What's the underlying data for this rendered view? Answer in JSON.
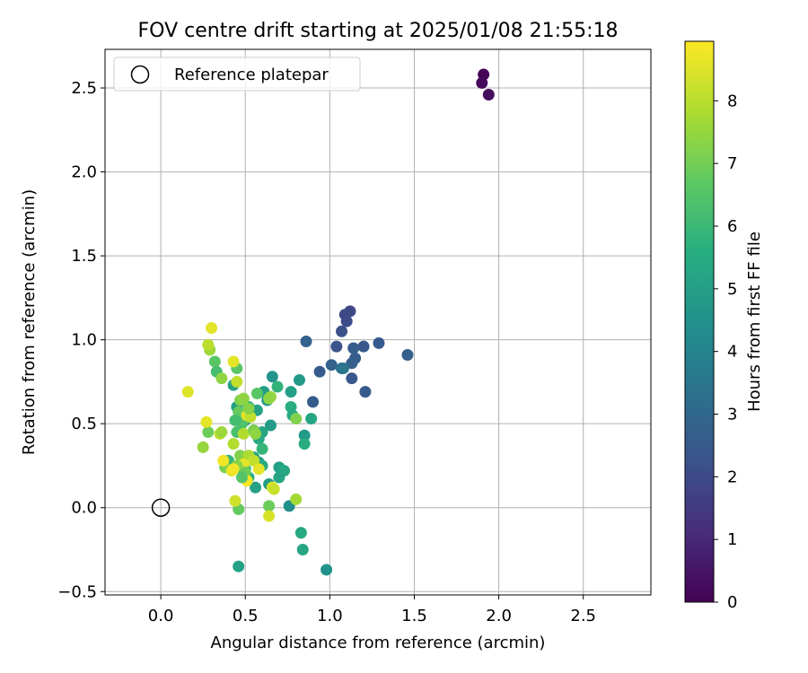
{
  "chart_data": {
    "type": "scatter",
    "title": "FOV centre drift starting at 2025/01/08 21:55:18",
    "xlabel": "Angular distance from reference (arcmin)",
    "ylabel": "Rotation from reference (arcmin)",
    "xlim": [
      -0.33,
      2.9
    ],
    "ylim": [
      -0.52,
      2.73
    ],
    "xticks": [
      0.0,
      0.5,
      1.0,
      1.5,
      2.0,
      2.5
    ],
    "xtick_labels": [
      "0.0",
      "0.5",
      "1.0",
      "1.5",
      "2.0",
      "2.5"
    ],
    "yticks": [
      -0.5,
      0.0,
      0.5,
      1.0,
      1.5,
      2.0,
      2.5
    ],
    "ytick_labels": [
      "−0.5",
      "0.0",
      "0.5",
      "1.0",
      "1.5",
      "2.0",
      "2.5"
    ],
    "grid": true,
    "legend": {
      "placement": "upper-left",
      "entries": [
        {
          "label": "Reference platepar",
          "marker": "open-circle"
        }
      ]
    },
    "reference_point": {
      "x": 0.0,
      "y": 0.0
    },
    "colorbar": {
      "label": "Hours from first FF file",
      "colormap": "viridis",
      "range": [
        0,
        8.95
      ],
      "ticks": [
        0,
        1,
        2,
        3,
        4,
        5,
        6,
        7,
        8
      ],
      "tick_labels": [
        "0",
        "1",
        "2",
        "3",
        "4",
        "5",
        "6",
        "7",
        "8"
      ]
    },
    "points": [
      {
        "x": 1.91,
        "y": 2.58,
        "c": 0.1
      },
      {
        "x": 1.9,
        "y": 2.53,
        "c": 0.2
      },
      {
        "x": 1.94,
        "y": 2.46,
        "c": 0.3
      },
      {
        "x": 1.12,
        "y": 1.17,
        "c": 1.9
      },
      {
        "x": 1.09,
        "y": 1.15,
        "c": 2.0
      },
      {
        "x": 1.1,
        "y": 1.11,
        "c": 2.1
      },
      {
        "x": 1.07,
        "y": 1.05,
        "c": 2.2
      },
      {
        "x": 1.04,
        "y": 0.96,
        "c": 2.3
      },
      {
        "x": 1.2,
        "y": 0.96,
        "c": 2.4
      },
      {
        "x": 1.29,
        "y": 0.98,
        "c": 2.5
      },
      {
        "x": 1.14,
        "y": 0.95,
        "c": 2.6
      },
      {
        "x": 1.15,
        "y": 0.89,
        "c": 2.6
      },
      {
        "x": 1.13,
        "y": 0.86,
        "c": 2.7
      },
      {
        "x": 1.01,
        "y": 0.85,
        "c": 2.8
      },
      {
        "x": 0.94,
        "y": 0.81,
        "c": 2.5
      },
      {
        "x": 1.13,
        "y": 0.77,
        "c": 2.4
      },
      {
        "x": 1.21,
        "y": 0.69,
        "c": 2.5
      },
      {
        "x": 0.9,
        "y": 0.63,
        "c": 2.6
      },
      {
        "x": 1.46,
        "y": 0.91,
        "c": 2.7
      },
      {
        "x": 0.86,
        "y": 0.99,
        "c": 2.8
      },
      {
        "x": 1.07,
        "y": 0.83,
        "c": 3.2
      },
      {
        "x": 1.08,
        "y": 0.83,
        "c": 3.5
      },
      {
        "x": 0.66,
        "y": 0.78,
        "c": 4.6
      },
      {
        "x": 0.82,
        "y": 0.76,
        "c": 4.8
      },
      {
        "x": 0.77,
        "y": 0.69,
        "c": 5.0
      },
      {
        "x": 0.61,
        "y": 0.69,
        "c": 5.0
      },
      {
        "x": 0.69,
        "y": 0.72,
        "c": 5.8
      },
      {
        "x": 0.63,
        "y": 0.64,
        "c": 4.7
      },
      {
        "x": 0.77,
        "y": 0.6,
        "c": 5.6
      },
      {
        "x": 0.78,
        "y": 0.55,
        "c": 5.4
      },
      {
        "x": 0.89,
        "y": 0.53,
        "c": 5.3
      },
      {
        "x": 0.65,
        "y": 0.49,
        "c": 4.9
      },
      {
        "x": 0.6,
        "y": 0.45,
        "c": 5.2
      },
      {
        "x": 0.85,
        "y": 0.43,
        "c": 4.8
      },
      {
        "x": 0.85,
        "y": 0.38,
        "c": 5.5
      },
      {
        "x": 0.57,
        "y": 0.58,
        "c": 5.1
      },
      {
        "x": 0.52,
        "y": 0.6,
        "c": 5.5
      },
      {
        "x": 0.45,
        "y": 0.6,
        "c": 5.0
      },
      {
        "x": 0.5,
        "y": 0.52,
        "c": 5.3
      },
      {
        "x": 0.55,
        "y": 0.46,
        "c": 5.6
      },
      {
        "x": 0.58,
        "y": 0.41,
        "c": 5.4
      },
      {
        "x": 0.6,
        "y": 0.35,
        "c": 5.9
      },
      {
        "x": 0.55,
        "y": 0.3,
        "c": 5.2
      },
      {
        "x": 0.58,
        "y": 0.27,
        "c": 5.0
      },
      {
        "x": 0.6,
        "y": 0.25,
        "c": 5.6
      },
      {
        "x": 0.7,
        "y": 0.24,
        "c": 5.0
      },
      {
        "x": 0.73,
        "y": 0.22,
        "c": 5.3
      },
      {
        "x": 0.7,
        "y": 0.18,
        "c": 5.2
      },
      {
        "x": 0.64,
        "y": 0.14,
        "c": 4.9
      },
      {
        "x": 0.56,
        "y": 0.12,
        "c": 5.1
      },
      {
        "x": 0.52,
        "y": 0.18,
        "c": 5.6
      },
      {
        "x": 0.5,
        "y": 0.23,
        "c": 5.8
      },
      {
        "x": 0.45,
        "y": 0.24,
        "c": 6.1
      },
      {
        "x": 0.4,
        "y": 0.28,
        "c": 5.9
      },
      {
        "x": 0.76,
        "y": 0.01,
        "c": 4.4
      },
      {
        "x": 0.83,
        "y": -0.15,
        "c": 5.4
      },
      {
        "x": 0.84,
        "y": -0.25,
        "c": 5.3
      },
      {
        "x": 0.98,
        "y": -0.37,
        "c": 4.5
      },
      {
        "x": 0.46,
        "y": -0.35,
        "c": 5.1
      },
      {
        "x": 0.46,
        "y": -0.01,
        "c": 6.8
      },
      {
        "x": 0.64,
        "y": 0.01,
        "c": 6.9
      },
      {
        "x": 0.43,
        "y": 0.73,
        "c": 5.1
      },
      {
        "x": 0.45,
        "y": 0.83,
        "c": 6.6
      },
      {
        "x": 0.32,
        "y": 0.87,
        "c": 6.6
      },
      {
        "x": 0.33,
        "y": 0.81,
        "c": 6.2
      },
      {
        "x": 0.36,
        "y": 0.77,
        "c": 7.4
      },
      {
        "x": 0.29,
        "y": 0.94,
        "c": 7.6
      },
      {
        "x": 0.28,
        "y": 0.97,
        "c": 8.0
      },
      {
        "x": 0.3,
        "y": 1.07,
        "c": 8.6
      },
      {
        "x": 0.16,
        "y": 0.69,
        "c": 8.5
      },
      {
        "x": 0.43,
        "y": 0.87,
        "c": 8.6
      },
      {
        "x": 0.45,
        "y": 0.75,
        "c": 8.1
      },
      {
        "x": 0.47,
        "y": 0.64,
        "c": 7.2
      },
      {
        "x": 0.49,
        "y": 0.65,
        "c": 7.4
      },
      {
        "x": 0.46,
        "y": 0.57,
        "c": 6.8
      },
      {
        "x": 0.48,
        "y": 0.5,
        "c": 6.4
      },
      {
        "x": 0.45,
        "y": 0.45,
        "c": 6.3
      },
      {
        "x": 0.44,
        "y": 0.52,
        "c": 6.2
      },
      {
        "x": 0.49,
        "y": 0.44,
        "c": 7.9
      },
      {
        "x": 0.43,
        "y": 0.38,
        "c": 7.9
      },
      {
        "x": 0.47,
        "y": 0.31,
        "c": 7.2
      },
      {
        "x": 0.52,
        "y": 0.31,
        "c": 7.8
      },
      {
        "x": 0.55,
        "y": 0.28,
        "c": 8.1
      },
      {
        "x": 0.49,
        "y": 0.26,
        "c": 8.6
      },
      {
        "x": 0.45,
        "y": 0.25,
        "c": 7.3
      },
      {
        "x": 0.38,
        "y": 0.24,
        "c": 7.1
      },
      {
        "x": 0.37,
        "y": 0.28,
        "c": 8.8
      },
      {
        "x": 0.42,
        "y": 0.22,
        "c": 8.6
      },
      {
        "x": 0.43,
        "y": 0.23,
        "c": 8.8
      },
      {
        "x": 0.5,
        "y": 0.21,
        "c": 6.9
      },
      {
        "x": 0.58,
        "y": 0.23,
        "c": 8.6
      },
      {
        "x": 0.51,
        "y": 0.16,
        "c": 8.8
      },
      {
        "x": 0.66,
        "y": 0.12,
        "c": 8.5
      },
      {
        "x": 0.48,
        "y": 0.18,
        "c": 6.5
      },
      {
        "x": 0.51,
        "y": 0.55,
        "c": 8.6
      },
      {
        "x": 0.53,
        "y": 0.54,
        "c": 8.1
      },
      {
        "x": 0.52,
        "y": 0.59,
        "c": 7.3
      },
      {
        "x": 0.55,
        "y": 0.46,
        "c": 7.1
      },
      {
        "x": 0.56,
        "y": 0.44,
        "c": 7.4
      },
      {
        "x": 0.57,
        "y": 0.68,
        "c": 6.6
      },
      {
        "x": 0.65,
        "y": 0.66,
        "c": 7.5
      },
      {
        "x": 0.64,
        "y": 0.65,
        "c": 7.4
      },
      {
        "x": 0.35,
        "y": 0.44,
        "c": 8.1
      },
      {
        "x": 0.36,
        "y": 0.45,
        "c": 7.6
      },
      {
        "x": 0.28,
        "y": 0.45,
        "c": 6.9
      },
      {
        "x": 0.27,
        "y": 0.51,
        "c": 8.6
      },
      {
        "x": 0.25,
        "y": 0.36,
        "c": 7.5
      },
      {
        "x": 0.44,
        "y": 0.04,
        "c": 8.3
      },
      {
        "x": 0.64,
        "y": -0.05,
        "c": 8.4
      },
      {
        "x": 0.67,
        "y": 0.11,
        "c": 8.2
      },
      {
        "x": 0.8,
        "y": 0.05,
        "c": 7.7
      },
      {
        "x": 0.8,
        "y": 0.53,
        "c": 7.2
      }
    ]
  }
}
